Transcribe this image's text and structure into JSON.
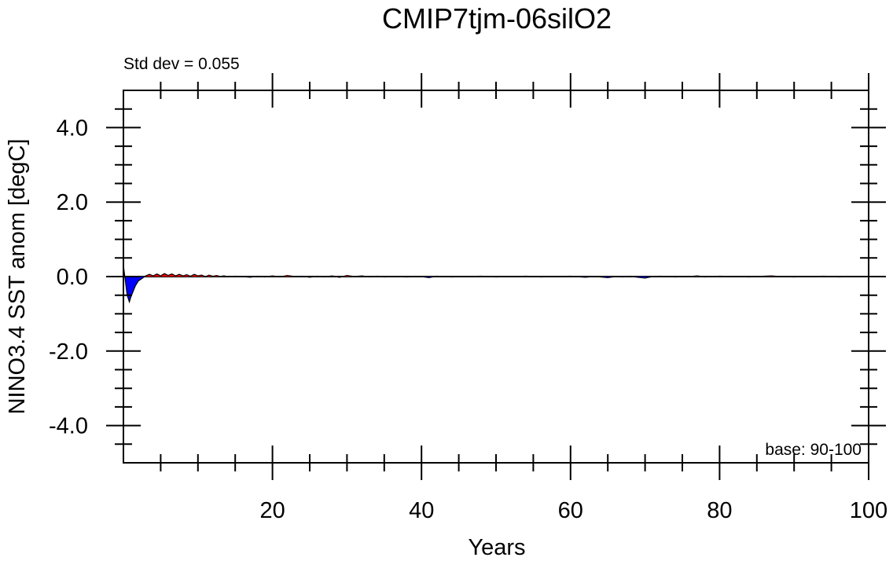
{
  "chart_data": {
    "type": "area",
    "title": "CMIP7tjm-06silO2",
    "xlabel": "Years",
    "ylabel": "NINO3.4 SST anom [degC]",
    "annotations": {
      "top_left": "Std dev = 0.055",
      "bottom_right": "base: 90-100"
    },
    "xlim": [
      0,
      100
    ],
    "ylim": [
      -5,
      5
    ],
    "x_ticks": [
      20,
      40,
      60,
      80,
      100
    ],
    "x_tick_labels": [
      "20",
      "40",
      "60",
      "80",
      "100"
    ],
    "y_ticks": [
      4,
      2,
      0,
      -2,
      -4
    ],
    "y_tick_labels": [
      "4.0",
      "2.0",
      "0.0",
      "-2.0",
      "-4.0"
    ],
    "grid": false,
    "colors": {
      "positive": "#ff0000",
      "negative": "#0000ff",
      "line": "#000000"
    },
    "series": [
      {
        "x": [
          0,
          0.25,
          0.5,
          0.8,
          1.0,
          1.3,
          1.6,
          2.0,
          2.5,
          3.0,
          3.5,
          4.0,
          4.5,
          5,
          5.5,
          6,
          6.5,
          7,
          7.5,
          8,
          8.5,
          9,
          9.5,
          10,
          10.5,
          11,
          11.5,
          12,
          12.5,
          13,
          13.5,
          14,
          15,
          16,
          17,
          18,
          19,
          20,
          21,
          22,
          23,
          24,
          25,
          26,
          27,
          28,
          29,
          30,
          31,
          32,
          33,
          34,
          35,
          36,
          38,
          40,
          41,
          42,
          44,
          46,
          48,
          50,
          52,
          54,
          56,
          58,
          60,
          62,
          63,
          64,
          65,
          66,
          67,
          68,
          69,
          70,
          71,
          72,
          74,
          76,
          77,
          78,
          80,
          82,
          84,
          86,
          87,
          88,
          90,
          92,
          94,
          96,
          98,
          100
        ],
        "y": [
          0.3,
          -0.1,
          -0.5,
          -0.68,
          -0.55,
          -0.4,
          -0.25,
          -0.12,
          -0.05,
          0.02,
          0.06,
          0.02,
          0.07,
          0.02,
          0.08,
          0.03,
          0.07,
          0.02,
          0.06,
          0.02,
          0.05,
          0.01,
          0.06,
          0.02,
          0.04,
          0.0,
          0.04,
          0.01,
          0.03,
          0.0,
          0.02,
          -0.01,
          0.01,
          0.0,
          -0.02,
          0.01,
          -0.01,
          0.02,
          -0.01,
          0.03,
          0.0,
          0.01,
          -0.02,
          0.01,
          -0.01,
          0.02,
          -0.02,
          0.03,
          0.0,
          0.02,
          -0.01,
          0.01,
          -0.01,
          0.0,
          -0.01,
          0.0,
          -0.03,
          0.01,
          -0.01,
          0.0,
          0.01,
          -0.01,
          0.0,
          0.01,
          -0.01,
          0.0,
          0.01,
          -0.02,
          0.0,
          -0.01,
          -0.03,
          0.0,
          -0.01,
          0.01,
          -0.02,
          -0.04,
          0.0,
          0.01,
          -0.01,
          0.0,
          0.02,
          -0.01,
          0.01,
          0.0,
          -0.01,
          0.01,
          0.02,
          0.0,
          -0.01,
          0.0,
          0.01,
          -0.01,
          0.0,
          0.0
        ]
      }
    ]
  }
}
